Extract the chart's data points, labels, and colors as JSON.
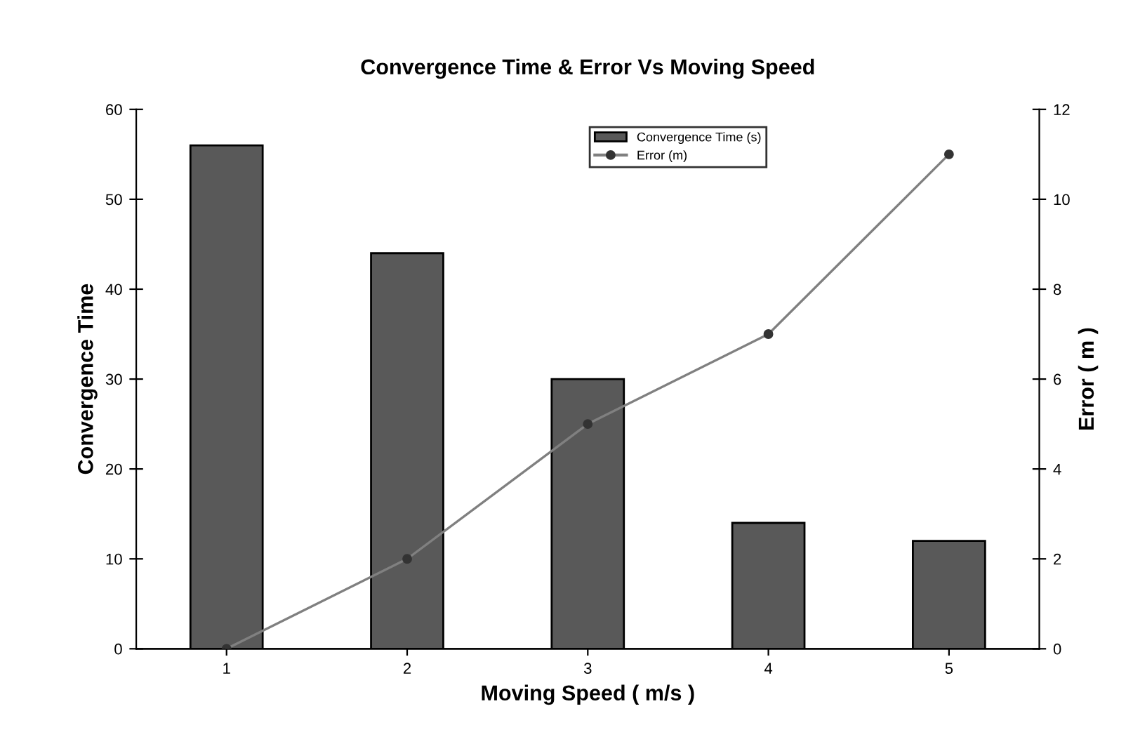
{
  "chart_data": {
    "type": "bar",
    "title": "Convergence Time & Error Vs Moving Speed",
    "xlabel": "Moving Speed ( m/s )",
    "ylabel": "Convergence Time",
    "y2label": "Error ( m )",
    "categories": [
      "1",
      "2",
      "3",
      "4",
      "5"
    ],
    "series": [
      {
        "name": "Convergence Time (s)",
        "color": "#595959",
        "values": [
          56,
          44,
          30,
          14,
          12
        ]
      },
      {
        "name": "Error (m)",
        "type": "line",
        "axis": "y2",
        "color": "#808080",
        "marker": "circle",
        "values": [
          0,
          2,
          5,
          7,
          11
        ]
      }
    ],
    "ylim": [
      0,
      60
    ],
    "yticks": [
      0,
      10,
      20,
      30,
      40,
      50,
      60
    ],
    "y2lim": [
      0,
      12
    ],
    "y2ticks": [
      0,
      2,
      4,
      6,
      8,
      10,
      12
    ],
    "grid": false,
    "legend": "top"
  }
}
